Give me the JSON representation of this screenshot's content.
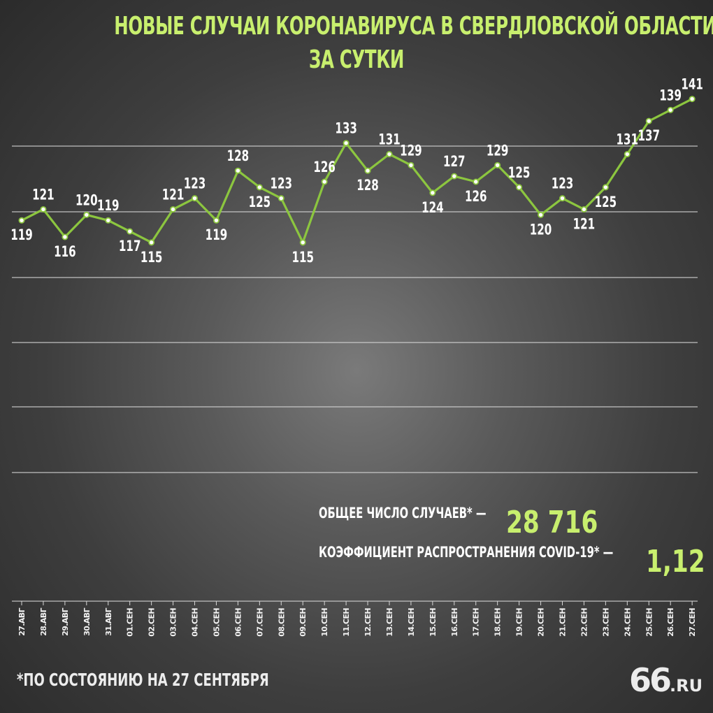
{
  "title": {
    "line1": "НОВЫЕ СЛУЧАИ КОРОНАВИРУСА В СВЕРДЛОВСКОЙ ОБЛАСТИ",
    "line2": "ЗА СУТКИ"
  },
  "colors": {
    "accent": "#c8ef6e",
    "line": "#8cc63f",
    "grid": "#d8d8d8",
    "text": "#ffffff"
  },
  "chart_data": {
    "type": "line",
    "categories": [
      "27.авг",
      "28.авг",
      "29.авг",
      "30.авг",
      "31.авг",
      "01.сен",
      "02.сен",
      "03.сен",
      "04.сен",
      "05.сен",
      "06.сен",
      "07.сен",
      "08.сен",
      "09.сен",
      "10.сен",
      "11.сен",
      "12.сен",
      "13.сен",
      "14.сен",
      "15.сен",
      "16.сен",
      "17.сен",
      "18.сен",
      "19.сен",
      "20.сен",
      "21.сен",
      "22.сен",
      "23.сен",
      "24.сен",
      "25.сен",
      "26.сен",
      "27.сен"
    ],
    "values": [
      119,
      121,
      116,
      120,
      119,
      117,
      115,
      121,
      123,
      119,
      128,
      125,
      123,
      115,
      126,
      133,
      128,
      131,
      129,
      124,
      127,
      126,
      129,
      125,
      120,
      123,
      121,
      125,
      131,
      137,
      139,
      141
    ],
    "label_positions": [
      "below",
      "above",
      "below",
      "above",
      "above",
      "below",
      "below",
      "above",
      "above",
      "below",
      "above",
      "below",
      "above",
      "below",
      "above",
      "above",
      "below",
      "above",
      "above",
      "below",
      "above",
      "below",
      "above",
      "above",
      "below",
      "above",
      "below",
      "below",
      "above",
      "below",
      "above",
      "above"
    ],
    "ylim": [
      50,
      145
    ],
    "grid": true,
    "gridlines": 6
  },
  "stats": {
    "total_label": "ОБЩЕЕ ЧИСЛО СЛУЧАЕВ* —",
    "total_value": "28 716",
    "coef_label": "КОЭФФИЦИЕНТ РАСПРОСТРАНЕНИЯ COVID-19* —",
    "coef_value": "1,12"
  },
  "footnote": "*ПО СОСТОЯНИЮ НА 27 СЕНТЯБРЯ",
  "logo": {
    "big": "66",
    "small": ".RU"
  }
}
